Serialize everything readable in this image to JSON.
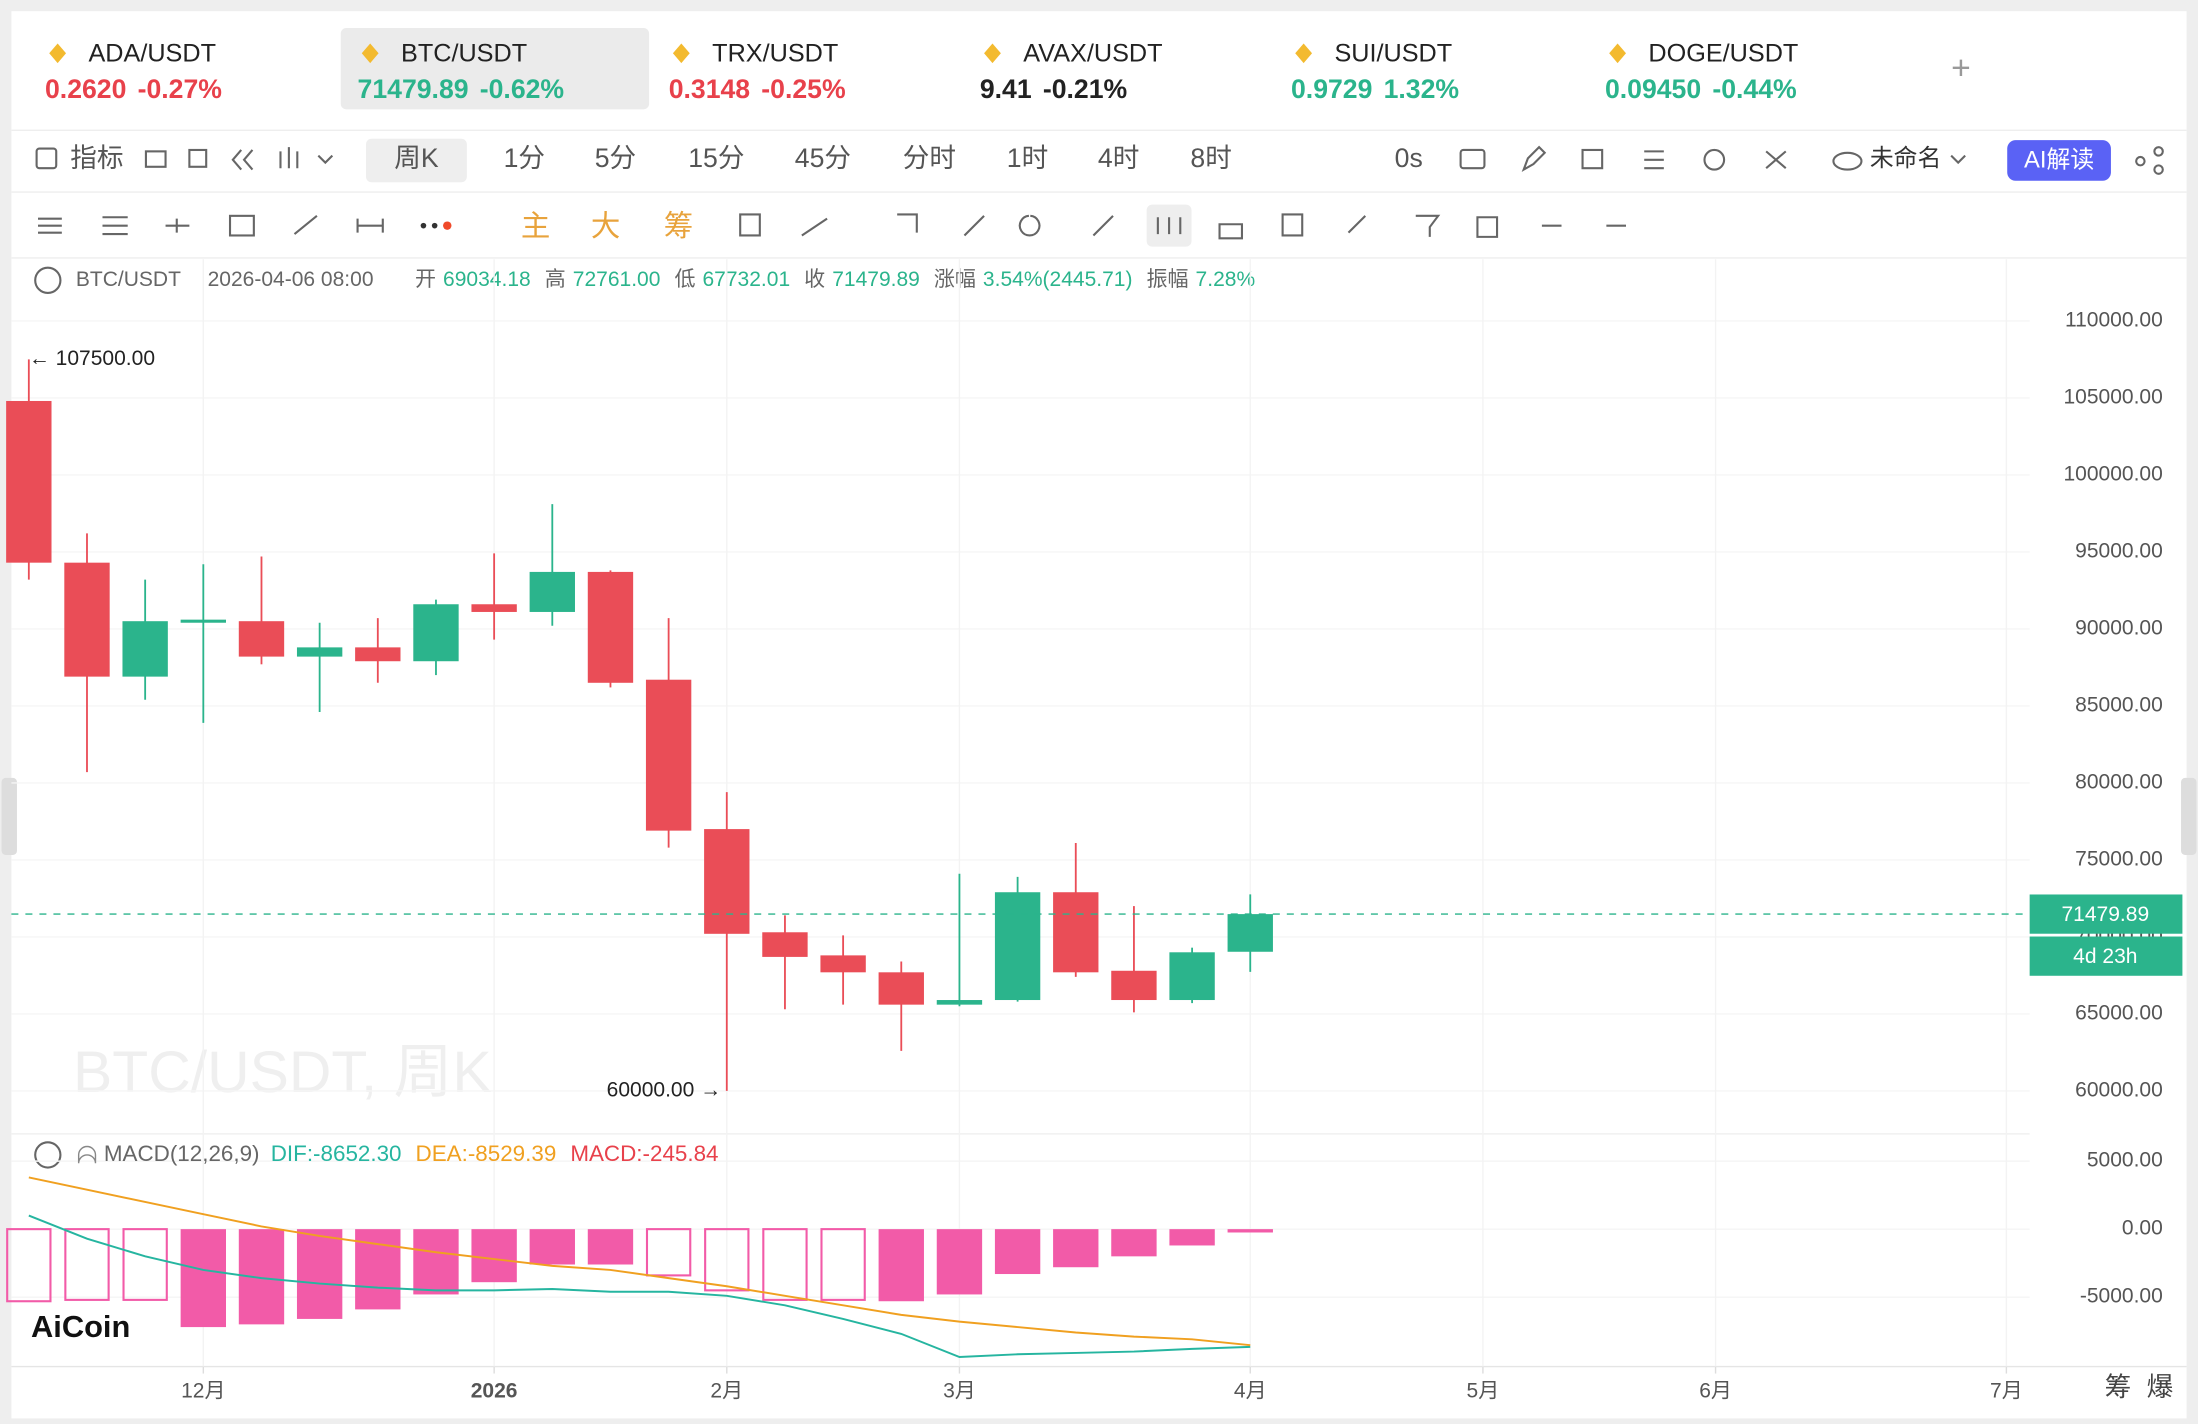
{
  "tickers": [
    {
      "symbol": "ADA/USDT",
      "price": "0.2620",
      "change": "-0.27%",
      "color": "#e8414b"
    },
    {
      "symbol": "BTC/USDT",
      "price": "71479.89",
      "change": "-0.62%",
      "color": "#2bb48c"
    },
    {
      "symbol": "TRX/USDT",
      "price": "0.3148",
      "change": "-0.25%",
      "color": "#e8414b"
    },
    {
      "symbol": "AVAX/USDT",
      "price": "9.41",
      "change": "-0.21%",
      "color": "#222222"
    },
    {
      "symbol": "SUI/USDT",
      "price": "0.9729",
      "change": "1.32%",
      "color": "#2bb48c"
    },
    {
      "symbol": "DOGE/USDT",
      "price": "0.09450",
      "change": "-0.44%",
      "color": "#2bb48c"
    }
  ],
  "toolbar": {
    "indicators": "指标",
    "periods": [
      "周K",
      "1分",
      "5分",
      "15分",
      "45分",
      "分时",
      "1时",
      "4时",
      "8时"
    ],
    "countdown": "0s",
    "layout": "未命名",
    "ai": "AI解读",
    "tools": [
      "主",
      "大",
      "筹"
    ]
  },
  "header": {
    "symbol": "BTC/USDT",
    "time": "2026-04-06 08:00",
    "fields": [
      {
        "label": "开",
        "value": "69034.18"
      },
      {
        "label": "高",
        "value": "72761.00"
      },
      {
        "label": "低",
        "value": "67732.01"
      },
      {
        "label": "收",
        "value": "71479.89"
      },
      {
        "label": "涨幅",
        "value": "3.54%(2445.71)"
      },
      {
        "label": "振幅",
        "value": "7.28%"
      }
    ]
  },
  "watermark": "BTC/USDT, 周K",
  "logo": "AiCoin",
  "side_tabs": [
    "筹",
    "爆"
  ],
  "chart_data": [
    {
      "type": "candlestick",
      "categories": [
        null,
        null,
        null,
        null,
        null,
        null,
        null,
        null,
        null,
        null,
        null,
        null,
        null,
        null,
        null,
        null,
        null,
        null,
        null,
        null,
        null,
        null
      ],
      "open": [
        104800,
        94300,
        86900,
        90400,
        90500,
        88200,
        88800,
        87900,
        91600,
        91100,
        93700,
        86700,
        77000,
        70300,
        68800,
        67700,
        65600,
        65900,
        72900,
        67800,
        65900,
        69034.18
      ],
      "high": [
        107500,
        96200,
        93200,
        94200,
        94700,
        90400,
        90700,
        91900,
        94900,
        98100,
        93800,
        90700,
        79400,
        71400,
        70100,
        68400,
        74100,
        73900,
        76100,
        72000,
        69300,
        72761
      ],
      "low": [
        93200,
        80700,
        85400,
        83900,
        87700,
        84600,
        86500,
        87000,
        89300,
        90200,
        86200,
        75800,
        60000,
        65300,
        65600,
        62600,
        65500,
        65800,
        67400,
        65100,
        65700,
        67732.01
      ],
      "close": [
        94300,
        86900,
        90500,
        90600,
        88200,
        88800,
        87900,
        91600,
        91100,
        93700,
        86500,
        76900,
        70200,
        68700,
        67700,
        65600,
        65900,
        72900,
        67700,
        65900,
        69000,
        71479.89
      ],
      "up_color": "#2bb48c",
      "down_color": "#ea4d57",
      "xlim": [
        -0.3,
        34.4
      ],
      "ylim": [
        57300,
        114000
      ],
      "yticks": [
        {
          "value": 60000,
          "label": "60000.00"
        },
        {
          "value": 65000,
          "label": "65000.00"
        },
        {
          "value": 70000,
          "label": "70000.00"
        },
        {
          "value": 75000,
          "label": "75000.00"
        },
        {
          "value": 80000,
          "label": "80000.00"
        },
        {
          "value": 85000,
          "label": "85000.00"
        },
        {
          "value": 90000,
          "label": "90000.00"
        },
        {
          "value": 95000,
          "label": "95000.00"
        },
        {
          "value": 100000,
          "label": "100000.00"
        },
        {
          "value": 105000,
          "label": "105000.00"
        },
        {
          "value": 110000,
          "label": "110000.00"
        }
      ],
      "grid": true,
      "last_price": 71479.89,
      "countdown": "4d 23h",
      "annotations": [
        {
          "text": "← 107500.00",
          "index": 0,
          "value": 107500
        },
        {
          "text": "60000.00 →",
          "index": 12,
          "value": 60000
        }
      ]
    },
    {
      "type": "macd",
      "title": "MACD(12,26,9)",
      "categories": [
        null,
        null,
        null,
        null,
        null,
        null,
        null,
        null,
        null,
        null,
        null,
        null,
        null,
        null,
        null,
        null,
        null,
        null,
        null,
        null,
        null,
        null
      ],
      "xlim": [
        -0.3,
        34.4
      ],
      "ylim": [
        -10100,
        6900
      ],
      "yticks": [
        {
          "value": -5000,
          "label": "-5000.00"
        },
        {
          "value": 0,
          "label": "0.00"
        },
        {
          "value": 5000,
          "label": "5000.00"
        }
      ],
      "xticks": [
        {
          "value": 3,
          "label": "12月"
        },
        {
          "value": 8,
          "label": "2026"
        },
        {
          "value": 12,
          "label": "2月"
        },
        {
          "value": 16,
          "label": "3月"
        },
        {
          "value": 21,
          "label": "4月"
        },
        {
          "value": 25,
          "label": "5月"
        },
        {
          "value": 29,
          "label": "6月"
        },
        {
          "value": 34,
          "label": "7月"
        }
      ],
      "grid": true,
      "series": [
        {
          "name": "DIF:-8652.30",
          "color": "#26b5a0",
          "style": "line",
          "values": [
            1000,
            -700,
            -2000,
            -3000,
            -3600,
            -4000,
            -4300,
            -4500,
            -4500,
            -4400,
            -4600,
            -4600,
            -4900,
            -5600,
            -6600,
            -7700,
            -9400,
            -9200,
            -9100,
            -9000,
            -8800,
            -8652.3
          ]
        },
        {
          "name": "DEA:-8529.39",
          "color": "#f0a020",
          "style": "line",
          "values": [
            3800,
            2900,
            2000,
            1100,
            200,
            -500,
            -1100,
            -1700,
            -2200,
            -2700,
            -3000,
            -3600,
            -4200,
            -4900,
            -5600,
            -6300,
            -6800,
            -7200,
            -7600,
            -7900,
            -8100,
            -8529.39
          ]
        },
        {
          "name": "MACD:-245.84",
          "color": "#f25ba8",
          "label_color": "#e8414b",
          "style": "bar",
          "values": [
            -5300,
            -5200,
            -5200,
            -7200,
            -7000,
            -6600,
            -5900,
            -4800,
            -3900,
            -2600,
            -2600,
            -3400,
            -4500,
            -5200,
            -5200,
            -5300,
            -4800,
            -3300,
            -2800,
            -2000,
            -1200,
            -245.84
          ],
          "bar_style": [
            "hollow",
            "hollow",
            "hollow",
            "filled",
            "filled",
            "filled",
            "filled",
            "filled",
            "filled",
            "filled",
            "filled",
            "hollow",
            "hollow",
            "hollow",
            "hollow",
            "filled",
            "filled",
            "filled",
            "filled",
            "filled",
            "filled",
            "filled"
          ]
        }
      ]
    }
  ]
}
